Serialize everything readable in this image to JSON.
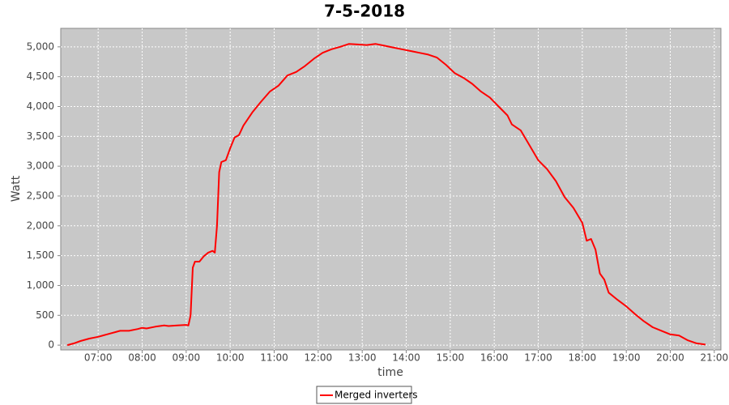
{
  "chart_data": {
    "type": "line",
    "title": "7-5-2018",
    "x_label": "time",
    "y_label": "Watt",
    "x": [
      6.3,
      6.45,
      6.6,
      6.8,
      7.0,
      7.2,
      7.4,
      7.5,
      7.7,
      7.9,
      8.0,
      8.1,
      8.3,
      8.5,
      8.6,
      8.8,
      9.0,
      9.05,
      9.1,
      9.15,
      9.2,
      9.3,
      9.4,
      9.5,
      9.6,
      9.65,
      9.7,
      9.75,
      9.8,
      9.9,
      10.0,
      10.1,
      10.2,
      10.3,
      10.5,
      10.7,
      10.9,
      11.1,
      11.3,
      11.5,
      11.7,
      11.9,
      12.1,
      12.3,
      12.5,
      12.7,
      12.9,
      13.1,
      13.3,
      13.5,
      13.7,
      13.9,
      14.1,
      14.3,
      14.5,
      14.7,
      14.9,
      15.1,
      15.3,
      15.5,
      15.7,
      15.9,
      16.1,
      16.3,
      16.4,
      16.6,
      16.8,
      17.0,
      17.2,
      17.4,
      17.6,
      17.8,
      18.0,
      18.1,
      18.2,
      18.3,
      18.4,
      18.5,
      18.6,
      18.8,
      19.0,
      19.2,
      19.4,
      19.6,
      19.8,
      20.0,
      20.2,
      20.4,
      20.6,
      20.8
    ],
    "series": [
      {
        "name": "Merged inverters",
        "color": "#ff0000",
        "values": [
          0,
          30,
          70,
          110,
          140,
          180,
          220,
          240,
          240,
          270,
          290,
          280,
          310,
          330,
          320,
          330,
          340,
          330,
          500,
          1300,
          1400,
          1400,
          1490,
          1550,
          1580,
          1550,
          2000,
          2900,
          3070,
          3100,
          3300,
          3480,
          3520,
          3680,
          3900,
          4080,
          4250,
          4350,
          4520,
          4580,
          4680,
          4800,
          4900,
          4960,
          5000,
          5050,
          5040,
          5030,
          5050,
          5020,
          4990,
          4960,
          4930,
          4900,
          4870,
          4820,
          4700,
          4560,
          4480,
          4380,
          4250,
          4150,
          4000,
          3850,
          3700,
          3600,
          3350,
          3100,
          2950,
          2750,
          2480,
          2300,
          2050,
          1750,
          1780,
          1600,
          1200,
          1100,
          880,
          760,
          650,
          520,
          400,
          300,
          240,
          180,
          160,
          80,
          30,
          10
        ]
      }
    ],
    "xlim": [
      6.15,
      21.15
    ],
    "xticks": [
      {
        "value": 7,
        "label": "07:00"
      },
      {
        "value": 8,
        "label": "08:00"
      },
      {
        "value": 9,
        "label": "09:00"
      },
      {
        "value": 10,
        "label": "10:00"
      },
      {
        "value": 11,
        "label": "11:00"
      },
      {
        "value": 12,
        "label": "12:00"
      },
      {
        "value": 13,
        "label": "13:00"
      },
      {
        "value": 14,
        "label": "14:00"
      },
      {
        "value": 15,
        "label": "15:00"
      },
      {
        "value": 16,
        "label": "16:00"
      },
      {
        "value": 17,
        "label": "17:00"
      },
      {
        "value": 18,
        "label": "18:00"
      },
      {
        "value": 19,
        "label": "19:00"
      },
      {
        "value": 20,
        "label": "20:00"
      },
      {
        "value": 21,
        "label": "21:00"
      }
    ],
    "ylim": [
      -80,
      5310
    ],
    "yticks": [
      0,
      500,
      {
        "value": 1000,
        "label": "1,000"
      },
      {
        "value": 1500,
        "label": "1,500"
      },
      {
        "value": 2000,
        "label": "2,000"
      },
      {
        "value": 2500,
        "label": "2,500"
      },
      {
        "value": 3000,
        "label": "3,000"
      },
      {
        "value": 3500,
        "label": "3,500"
      },
      {
        "value": 4000,
        "label": "4,000"
      },
      {
        "value": 4500,
        "label": "4,500"
      },
      {
        "value": 5000,
        "label": "5,000"
      }
    ],
    "grid": true,
    "legend": "bottom"
  }
}
